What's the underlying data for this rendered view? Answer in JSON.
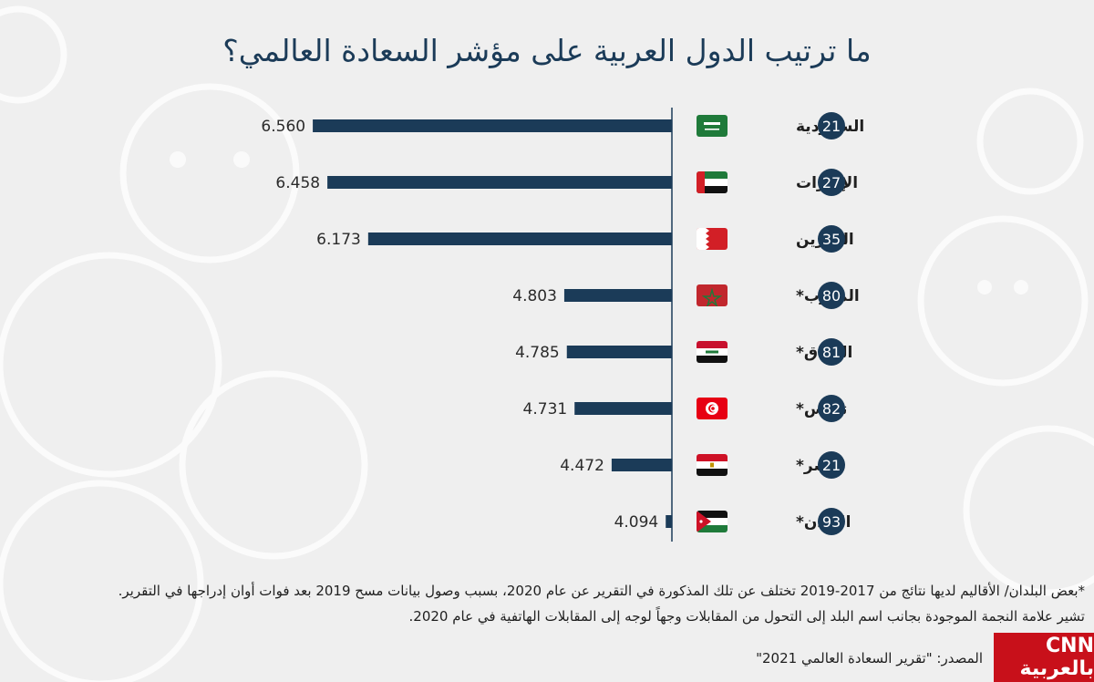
{
  "title": "ما ترتيب الدول العربية على مؤشر السعادة العالمي؟",
  "chart_data": {
    "type": "bar",
    "orientation": "horizontal",
    "title": "ما ترتيب الدول العربية على مؤشر السعادة العالمي؟",
    "categories": [
      "السعودية",
      "الإمارات",
      "البحرين",
      "المغرب*",
      "العراق*",
      "تونس*",
      "مصر*",
      "الأردن*"
    ],
    "ranks": [
      "21",
      "27",
      "35",
      "80",
      "81",
      "82",
      "21",
      "93"
    ],
    "values": [
      6.56,
      6.458,
      6.173,
      4.803,
      4.785,
      4.731,
      4.472,
      4.094
    ],
    "value_labels": [
      "6.560",
      "6.458",
      "6.173",
      "4.803",
      "4.785",
      "4.731",
      "4.472",
      "4.094"
    ],
    "flags": [
      "saudi-arabia",
      "uae",
      "bahrain",
      "morocco",
      "iraq",
      "tunisia",
      "egypt",
      "jordan"
    ],
    "xlabel": "",
    "ylabel": "",
    "grid": false,
    "colors": {
      "bar": "#1b3b58",
      "rank_badge": "#1b3b58",
      "axis": "#1b3b58"
    }
  },
  "footnotes": [
    "*بعض البلدان/ الأقاليم لديها نتائج من 2017-2019 تختلف عن تلك المذكورة في التقرير عن عام 2020، بسبب وصول بيانات مسح 2019 بعد فوات أوان إدراجها في التقرير.",
    "تشير علامة النجمة الموجودة بجانب اسم البلد إلى التحول من المقابلات وجهاً لوجه إلى المقابلات الهاتفية في عام 2020."
  ],
  "source": "المصدر: \"تقرير السعادة العالمي 2021\"",
  "logo_text": "بالعربية CNN"
}
